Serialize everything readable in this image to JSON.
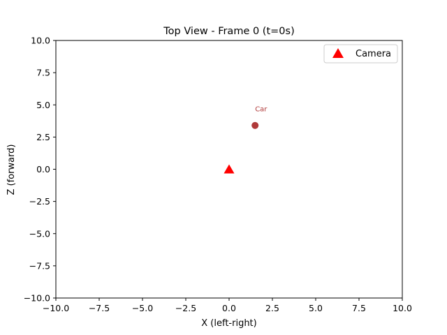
{
  "chart_data": {
    "type": "scatter",
    "title": "Top View - Frame 0 (t=0s)",
    "xlabel": "X (left-right)",
    "ylabel": "Z (forward)",
    "xlim": [
      -10,
      10
    ],
    "ylim": [
      -10,
      10
    ],
    "xticks": [
      -10,
      -7.5,
      -5,
      -2.5,
      0,
      2.5,
      5,
      7.5,
      10
    ],
    "yticks": [
      -10,
      -7.5,
      -5,
      -2.5,
      0,
      2.5,
      5,
      7.5,
      10
    ],
    "xtick_labels": [
      "−10.0",
      "−7.5",
      "−5.0",
      "−2.5",
      "0.0",
      "2.5",
      "5.0",
      "7.5",
      "10.0"
    ],
    "ytick_labels": [
      "−10.0",
      "−7.5",
      "−5.0",
      "−2.5",
      "0.0",
      "2.5",
      "5.0",
      "7.5",
      "10.0"
    ],
    "grid": false,
    "legend": {
      "placement": "top-right",
      "entries": [
        "Camera"
      ]
    },
    "series": [
      {
        "name": "Camera",
        "marker": "triangle",
        "color": "#ff0000",
        "points": [
          {
            "x": 0.0,
            "y": 0.0
          }
        ]
      },
      {
        "marker": "circle",
        "color": "#b03a3a",
        "points": [
          {
            "x": 1.5,
            "y": 3.4
          }
        ]
      }
    ],
    "annotations": [
      {
        "text": "Car",
        "x": 1.5,
        "y": 4.5,
        "color": "#b03a3a"
      }
    ]
  }
}
